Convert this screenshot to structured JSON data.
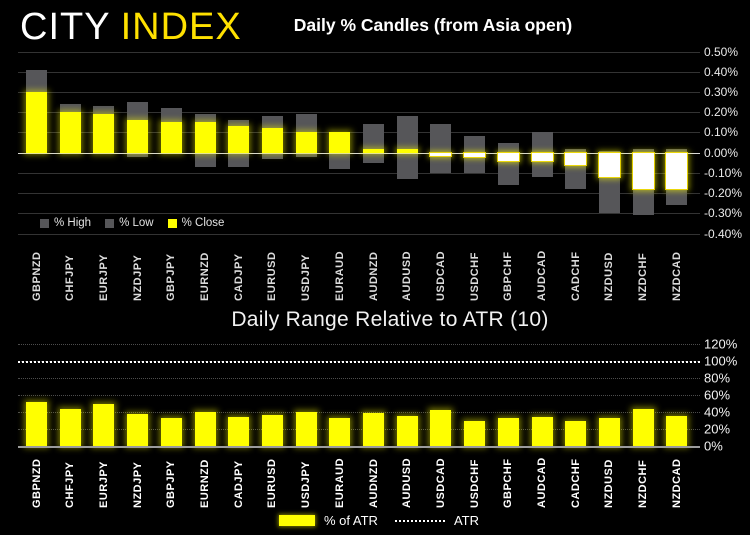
{
  "header": {
    "logo_city": "CITY",
    "logo_index": "INDEX"
  },
  "colors": {
    "background": "#000000",
    "bar_yellow": "#ffff00",
    "brand_yellow": "#ffe100",
    "range_gray": "#565659",
    "negative_close_fill": "#ffffff",
    "atr_line_white": "#ffffff",
    "gridline": "#333333",
    "zero_line": "#d9d9d9"
  },
  "chart_data": [
    {
      "id": "daily-percent-candles",
      "type": "bar",
      "title": "Daily % Candles (from Asia open)",
      "categories": [
        "GBPNZD",
        "CHFJPY",
        "EURJPY",
        "NZDJPY",
        "GBPJPY",
        "EURNZD",
        "CADJPY",
        "EURUSD",
        "USDJPY",
        "EURAUD",
        "AUDNZD",
        "AUDUSD",
        "USDCAD",
        "USDCHF",
        "GBPCHF",
        "AUDCAD",
        "CADCHF",
        "NZDUSD",
        "NZDCHF",
        "NZDCAD"
      ],
      "series": [
        {
          "name": "% High",
          "values": [
            0.41,
            0.24,
            0.23,
            0.25,
            0.22,
            0.19,
            0.16,
            0.18,
            0.19,
            0.1,
            0.14,
            0.18,
            0.14,
            0.08,
            0.05,
            0.1,
            0.02,
            0.01,
            0.02,
            0.02
          ]
        },
        {
          "name": "% Low",
          "values": [
            0.0,
            0.0,
            0.0,
            -0.02,
            0.0,
            -0.07,
            -0.07,
            -0.03,
            -0.02,
            -0.08,
            -0.05,
            -0.13,
            -0.1,
            -0.1,
            -0.16,
            -0.12,
            -0.18,
            -0.3,
            -0.31,
            -0.26
          ]
        },
        {
          "name": "% Close",
          "values": [
            0.3,
            0.2,
            0.19,
            0.16,
            0.15,
            0.15,
            0.13,
            0.12,
            0.1,
            0.1,
            0.02,
            0.02,
            -0.01,
            -0.02,
            -0.04,
            -0.04,
            -0.06,
            -0.12,
            -0.18,
            -0.18
          ]
        }
      ],
      "ylim": [
        -0.4,
        0.5
      ],
      "y_ticks": [
        "0.50%",
        "0.40%",
        "0.30%",
        "0.20%",
        "0.10%",
        "0.00%",
        "-0.10%",
        "-0.20%",
        "-0.30%",
        "-0.40%"
      ],
      "y_axis_side": "right",
      "grid": true,
      "legend_position": "bottom-left"
    },
    {
      "id": "daily-range-relative-to-atr",
      "type": "bar",
      "title": "Daily Range Relative to ATR (10)",
      "categories": [
        "GBPNZD",
        "CHFJPY",
        "EURJPY",
        "NZDJPY",
        "GBPJPY",
        "EURNZD",
        "CADJPY",
        "EURUSD",
        "USDJPY",
        "EURAUD",
        "AUDNZD",
        "AUDUSD",
        "USDCAD",
        "USDCHF",
        "GBPCHF",
        "AUDCAD",
        "CADCHF",
        "NZDUSD",
        "NZDCHF",
        "NZDCAD"
      ],
      "series": [
        {
          "name": "% of ATR",
          "values": [
            52,
            44,
            49,
            38,
            33,
            40,
            34,
            36,
            40,
            33,
            39,
            35,
            42,
            29,
            33,
            34,
            30,
            33,
            44,
            35
          ]
        }
      ],
      "reference_line": {
        "name": "ATR",
        "value": 100,
        "style": "dotted-white"
      },
      "ylim": [
        0,
        120
      ],
      "y_ticks": [
        "120%",
        "100%",
        "80%",
        "60%",
        "40%",
        "20%",
        "0%"
      ],
      "y_axis_side": "right",
      "grid": "dotted",
      "legend_position": "bottom-center"
    }
  ]
}
